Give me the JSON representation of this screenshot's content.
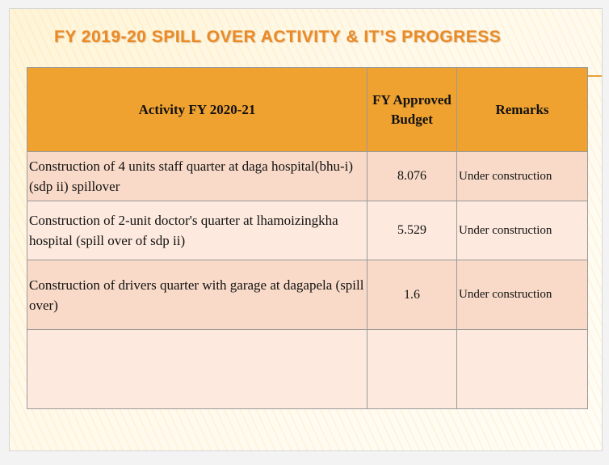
{
  "slide": {
    "title": "FY 2019-20 SPILL OVER ACTIVITY & IT’S PROGRESS"
  },
  "table": {
    "headers": {
      "activity": "Activity FY 2020-21",
      "budget": "FY Approved Budget",
      "remarks": "Remarks"
    },
    "rows": [
      {
        "activity": "Construction of 4 units staff quarter at daga hospital(bhu-i) (sdp ii) spillover",
        "budget": "8.076",
        "remarks": "Under construction"
      },
      {
        "activity": "Construction of 2-unit doctor's quarter at lhamoizingkha hospital (spill over of sdp ii)",
        "budget": "5.529",
        "remarks": "Under construction"
      },
      {
        "activity": "Construction of drivers quarter with garage  at dagapela (spill over)",
        "budget": "1.6",
        "remarks": "Under construction"
      },
      {
        "activity": "",
        "budget": "",
        "remarks": ""
      }
    ]
  },
  "colors": {
    "title": "#ea8a27",
    "header_bg": "#f0a230",
    "row_dark": "#f9dac8",
    "row_light": "#fde9dd"
  }
}
